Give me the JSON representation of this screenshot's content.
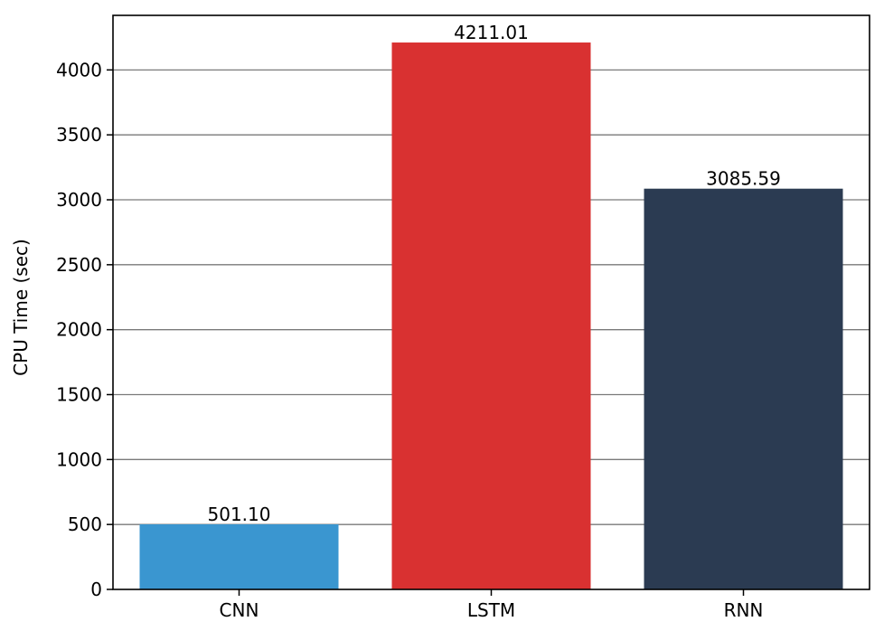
{
  "chart_data": {
    "type": "bar",
    "categories": [
      "CNN",
      "LSTM",
      "RNN"
    ],
    "values": [
      501.1,
      4211.01,
      3085.59
    ],
    "value_labels": [
      "501.10",
      "4211.01",
      "3085.59"
    ],
    "title": "",
    "xlabel": "",
    "ylabel": "CPU Time (sec)",
    "ylim": [
      0,
      4420
    ],
    "yticks": [
      0,
      500,
      1000,
      1500,
      2000,
      2500,
      3000,
      3500,
      4000
    ],
    "grid": "horizontal",
    "legend": "none",
    "colors": {
      "CNN": "#3a96d0",
      "LSTM": "#d93131",
      "RNN": "#2b3b52",
      "grid": "#7a7a7a",
      "axis": "#000000"
    }
  }
}
